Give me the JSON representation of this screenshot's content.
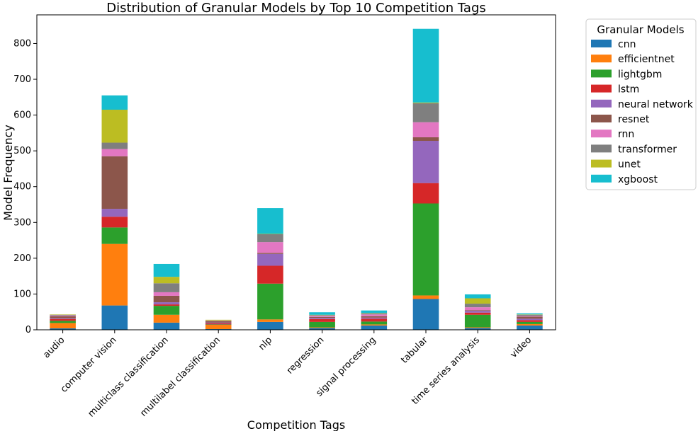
{
  "chart_data": {
    "type": "bar",
    "stacked": true,
    "title": "Distribution of Granular Models by Top 10 Competition Tags",
    "xlabel": "Competition Tags",
    "ylabel": "Model Frequency",
    "ylim": [
      0,
      880
    ],
    "yticks": [
      0,
      100,
      200,
      300,
      400,
      500,
      600,
      700,
      800
    ],
    "legend_title": "Granular Models",
    "legend_placement": "outside-right",
    "categories": [
      "audio",
      "computer vision",
      "multiclass classification",
      "multilabel classification",
      "nlp",
      "regression",
      "signal processing",
      "tabular",
      "time series analysis",
      "video"
    ],
    "series": [
      {
        "name": "cnn",
        "color": "#1f77b4",
        "values": [
          4,
          68,
          20,
          2,
          22,
          5,
          12,
          86,
          5,
          12
        ]
      },
      {
        "name": "efficientnet",
        "color": "#ff7f0e",
        "values": [
          15,
          172,
          22,
          12,
          7,
          2,
          3,
          10,
          2,
          4
        ]
      },
      {
        "name": "lightgbm",
        "color": "#2ca02c",
        "values": [
          6,
          46,
          25,
          1,
          100,
          15,
          8,
          257,
          35,
          6
        ]
      },
      {
        "name": "lstm",
        "color": "#d62728",
        "values": [
          5,
          30,
          4,
          3,
          50,
          8,
          8,
          57,
          6,
          5
        ]
      },
      {
        "name": "neural network",
        "color": "#9467bd",
        "values": [
          2,
          22,
          6,
          2,
          33,
          3,
          3,
          118,
          5,
          4
        ]
      },
      {
        "name": "resnet",
        "color": "#8c564b",
        "values": [
          6,
          147,
          18,
          4,
          3,
          3,
          4,
          10,
          2,
          6
        ]
      },
      {
        "name": "rnn",
        "color": "#e377c2",
        "values": [
          2,
          20,
          10,
          1,
          30,
          3,
          5,
          42,
          8,
          2
        ]
      },
      {
        "name": "transformer",
        "color": "#7f7f7f",
        "values": [
          2,
          18,
          25,
          1,
          22,
          2,
          3,
          53,
          10,
          3
        ]
      },
      {
        "name": "unet",
        "color": "#bcbd22",
        "values": [
          1,
          92,
          18,
          2,
          1,
          1,
          1,
          2,
          15,
          1
        ]
      },
      {
        "name": "xgboost",
        "color": "#17becf",
        "values": [
          0,
          40,
          36,
          0,
          72,
          7,
          7,
          206,
          11,
          3
        ]
      }
    ]
  }
}
